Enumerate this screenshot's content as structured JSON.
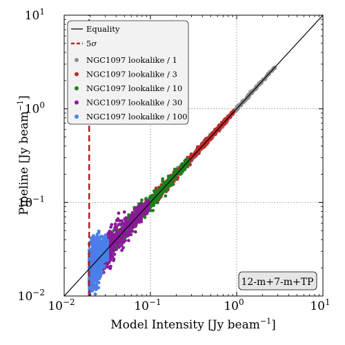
{
  "chart_data": {
    "type": "scatter",
    "xscale": "log",
    "yscale": "log",
    "xlim": [
      0.01,
      10
    ],
    "ylim": [
      0.01,
      10
    ],
    "grid": true,
    "xlabel": "Model Intensity [Jy beam$^{-1}$]",
    "ylabel": "Pipeline [Jy beam$^{-1}$]",
    "xlabel_text": "Model Intensity [Jy beam",
    "ylabel_text": "Pipeline [Jy beam",
    "label_exponent": "−1",
    "label_close": "]",
    "x_ticks": [
      {
        "base": "10",
        "exp": "−2",
        "value": 0.01
      },
      {
        "base": "10",
        "exp": "−1",
        "value": 0.1
      },
      {
        "base": "10",
        "exp": "0",
        "value": 1
      },
      {
        "base": "10",
        "exp": "1",
        "value": 10
      }
    ],
    "y_ticks": [
      {
        "base": "10",
        "exp": "−2",
        "value": 0.01
      },
      {
        "base": "10",
        "exp": "−1",
        "value": 0.1
      },
      {
        "base": "10",
        "exp": "0",
        "value": 1
      },
      {
        "base": "10",
        "exp": "1",
        "value": 10
      }
    ],
    "legend_position": "upper-left",
    "annotation": "12-m+7-m+TP",
    "lines": [
      {
        "name": "Equality",
        "style": "solid",
        "color": "#000000",
        "x": [
          0.01,
          10
        ],
        "y": [
          0.01,
          10
        ]
      },
      {
        "name": "5σ",
        "name_main": "5",
        "name_symbol": "σ",
        "style": "dashed",
        "color": "#b22222",
        "x": [
          0.0195,
          0.0195
        ],
        "y": [
          0.01,
          10
        ]
      }
    ],
    "series": [
      {
        "name": "NGC1097 lookalike / 1",
        "color": "#8c8c8c",
        "x_range": [
          0.1,
          2.8
        ],
        "scatter": 0.04
      },
      {
        "name": "NGC1097 lookalike / 3",
        "color": "#c0292b",
        "x_range": [
          0.05,
          0.92
        ],
        "scatter": 0.07
      },
      {
        "name": "NGC1097 lookalike / 10",
        "color": "#1f7f1f",
        "x_range": [
          0.025,
          0.28
        ],
        "scatter": 0.12
      },
      {
        "name": "NGC1097 lookalike / 30",
        "color": "#8b1a9a",
        "x_range": [
          0.0195,
          0.095
        ],
        "scatter": 0.22
      },
      {
        "name": "NGC1097 lookalike / 100",
        "color": "#4a7fe8",
        "x_range": [
          0.0195,
          0.032
        ],
        "scatter": 0.3
      }
    ]
  }
}
